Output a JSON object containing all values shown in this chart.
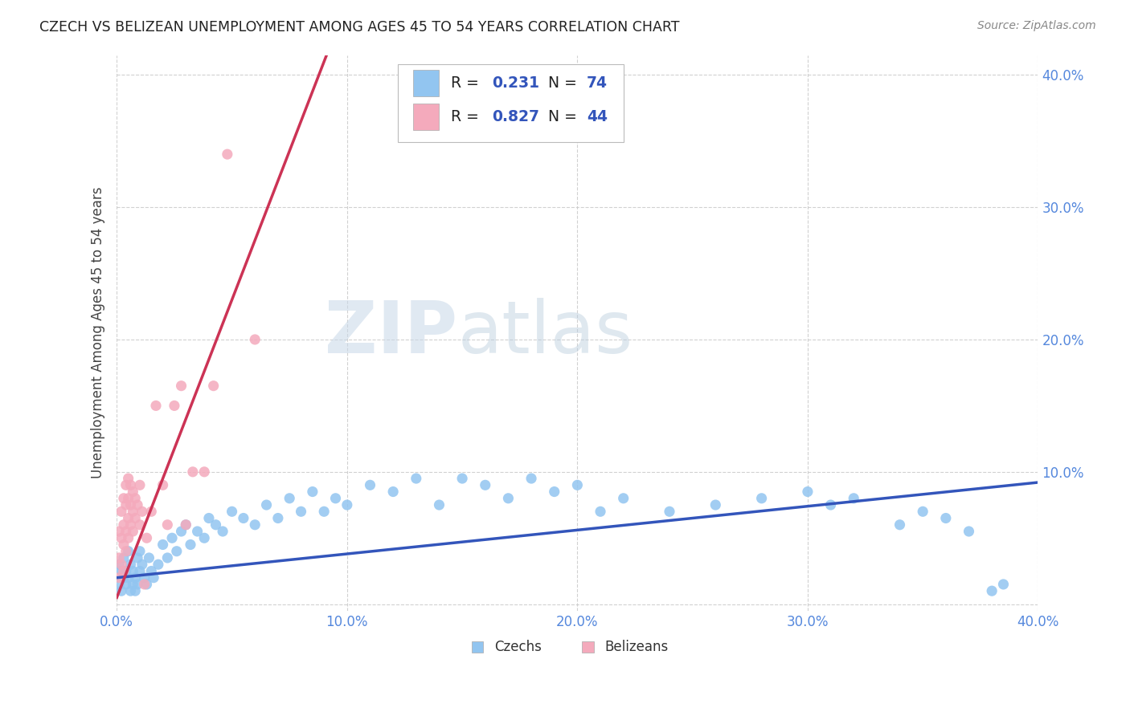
{
  "title": "CZECH VS BELIZEAN UNEMPLOYMENT AMONG AGES 45 TO 54 YEARS CORRELATION CHART",
  "source": "Source: ZipAtlas.com",
  "ylabel": "Unemployment Among Ages 45 to 54 years",
  "xlim": [
    0.0,
    0.4
  ],
  "ylim": [
    -0.005,
    0.415
  ],
  "xticks": [
    0.0,
    0.1,
    0.2,
    0.3,
    0.4
  ],
  "yticks": [
    0.0,
    0.1,
    0.2,
    0.3,
    0.4
  ],
  "xticklabels": [
    "0.0%",
    "10.0%",
    "20.0%",
    "30.0%",
    "40.0%"
  ],
  "yticklabels": [
    "",
    "10.0%",
    "20.0%",
    "30.0%",
    "40.0%"
  ],
  "czech_color": "#92C5F0",
  "belizean_color": "#F4AABC",
  "czech_line_color": "#3355BB",
  "belizean_line_color": "#CC3355",
  "czech_R": "0.231",
  "czech_N": "74",
  "belizean_R": "0.827",
  "belizean_N": "44",
  "watermark_zip": "ZIP",
  "watermark_atlas": "atlas",
  "background_color": "#ffffff",
  "grid_color": "#cccccc",
  "title_color": "#222222",
  "tick_color": "#5588DD",
  "czech_x": [
    0.001,
    0.001,
    0.002,
    0.002,
    0.003,
    0.003,
    0.004,
    0.004,
    0.005,
    0.005,
    0.006,
    0.006,
    0.007,
    0.007,
    0.008,
    0.008,
    0.009,
    0.009,
    0.01,
    0.01,
    0.011,
    0.012,
    0.013,
    0.014,
    0.015,
    0.016,
    0.018,
    0.02,
    0.022,
    0.024,
    0.026,
    0.028,
    0.03,
    0.032,
    0.035,
    0.038,
    0.04,
    0.043,
    0.046,
    0.05,
    0.055,
    0.06,
    0.065,
    0.07,
    0.075,
    0.08,
    0.085,
    0.09,
    0.095,
    0.1,
    0.11,
    0.12,
    0.13,
    0.14,
    0.15,
    0.16,
    0.17,
    0.18,
    0.19,
    0.2,
    0.21,
    0.22,
    0.24,
    0.26,
    0.28,
    0.3,
    0.31,
    0.32,
    0.34,
    0.35,
    0.36,
    0.37,
    0.38,
    0.385
  ],
  "czech_y": [
    0.03,
    0.015,
    0.025,
    0.01,
    0.02,
    0.035,
    0.015,
    0.025,
    0.02,
    0.04,
    0.01,
    0.03,
    0.015,
    0.025,
    0.02,
    0.01,
    0.035,
    0.015,
    0.025,
    0.04,
    0.03,
    0.02,
    0.015,
    0.035,
    0.025,
    0.02,
    0.03,
    0.045,
    0.035,
    0.05,
    0.04,
    0.055,
    0.06,
    0.045,
    0.055,
    0.05,
    0.065,
    0.06,
    0.055,
    0.07,
    0.065,
    0.06,
    0.075,
    0.065,
    0.08,
    0.07,
    0.085,
    0.07,
    0.08,
    0.075,
    0.09,
    0.085,
    0.095,
    0.075,
    0.095,
    0.09,
    0.08,
    0.095,
    0.085,
    0.09,
    0.07,
    0.08,
    0.07,
    0.075,
    0.08,
    0.085,
    0.075,
    0.08,
    0.06,
    0.07,
    0.065,
    0.055,
    0.01,
    0.015
  ],
  "belizean_x": [
    0.001,
    0.001,
    0.001,
    0.002,
    0.002,
    0.002,
    0.003,
    0.003,
    0.003,
    0.003,
    0.004,
    0.004,
    0.004,
    0.004,
    0.005,
    0.005,
    0.005,
    0.005,
    0.006,
    0.006,
    0.006,
    0.007,
    0.007,
    0.007,
    0.008,
    0.008,
    0.009,
    0.01,
    0.01,
    0.011,
    0.012,
    0.013,
    0.015,
    0.017,
    0.02,
    0.022,
    0.025,
    0.028,
    0.03,
    0.033,
    0.038,
    0.042,
    0.048,
    0.06
  ],
  "belizean_y": [
    0.02,
    0.035,
    0.055,
    0.03,
    0.05,
    0.07,
    0.025,
    0.045,
    0.06,
    0.08,
    0.04,
    0.055,
    0.075,
    0.09,
    0.05,
    0.065,
    0.08,
    0.095,
    0.06,
    0.075,
    0.09,
    0.055,
    0.07,
    0.085,
    0.065,
    0.08,
    0.075,
    0.06,
    0.09,
    0.07,
    0.015,
    0.05,
    0.07,
    0.15,
    0.09,
    0.06,
    0.15,
    0.165,
    0.06,
    0.1,
    0.1,
    0.165,
    0.34,
    0.2
  ]
}
